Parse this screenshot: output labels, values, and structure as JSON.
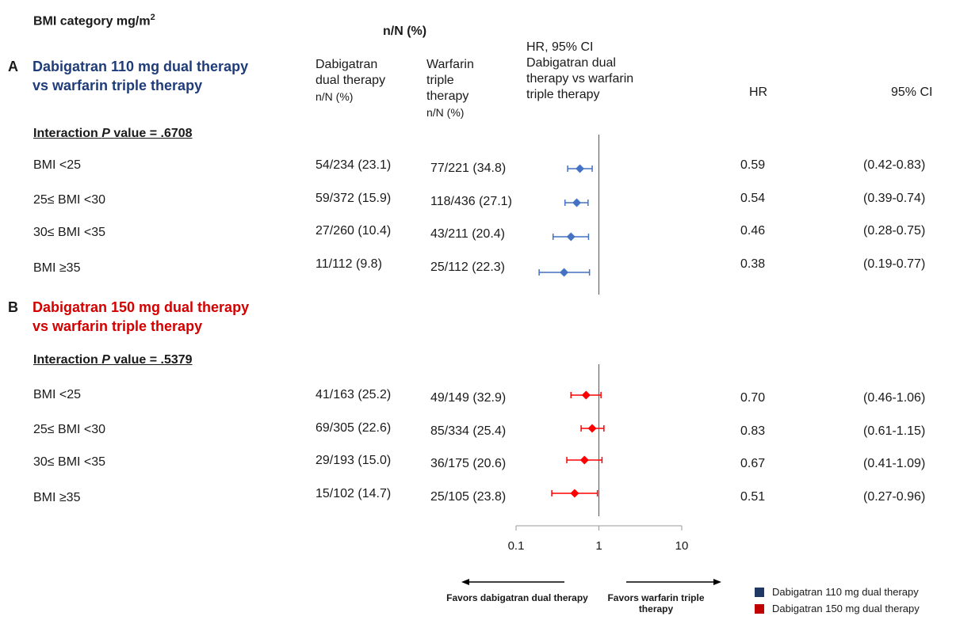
{
  "header": {
    "bmi_category": "BMI category mg/m",
    "bmi_sup": "2",
    "nN": "n/N (%)",
    "dabi_col": [
      "Dabigatran",
      "dual therapy"
    ],
    "dabi_col_sub": "n/N (%)",
    "warf_col": [
      "Warfarin",
      "triple",
      "therapy"
    ],
    "warf_col_sub": "n/N (%)",
    "hr_ci_col": [
      "HR, 95% CI",
      "Dabigatran dual",
      "therapy vs warfarin",
      "triple therapy"
    ],
    "hr_col": "HR",
    "ci_col": "95% CI"
  },
  "sections": [
    {
      "letter": "A",
      "title": [
        "Dabigatran  110 mg dual therapy",
        "vs warfarin triple therapy"
      ],
      "interaction_prefix": "Interaction ",
      "interaction_p": "P",
      "interaction_value": " value = .6708",
      "color": "#4472c4",
      "rows": [
        {
          "label": "BMI <25",
          "dabi": "54/234 (23.1)",
          "warf": "77/221 (34.8)",
          "hr_text": "0.59",
          "ci_text": "(0.42-0.83)"
        },
        {
          "label": "25≤ BMI <30",
          "dabi": "59/372 (15.9)",
          "warf": "118/436 (27.1)",
          "hr_text": "0.54",
          "ci_text": "(0.39-0.74)"
        },
        {
          "label": "30≤ BMI <35",
          "dabi": "27/260 (10.4)",
          "warf": "43/211 (20.4)",
          "hr_text": "0.46",
          "ci_text": "(0.28-0.75)"
        },
        {
          "label": "BMI ≥35",
          "dabi": "11/112 (9.8)",
          "warf": "25/112 (22.3)",
          "hr_text": "0.38",
          "ci_text": "(0.19-0.77)"
        }
      ]
    },
    {
      "letter": "B",
      "title": [
        "Dabigatran 150 mg dual therapy",
        "vs warfarin triple therapy"
      ],
      "interaction_prefix": "Interaction ",
      "interaction_p": "P",
      "interaction_value": " value = .5379",
      "color": "#ff0000",
      "rows": [
        {
          "label": "BMI <25",
          "dabi": "41/163 (25.2)",
          "warf": "49/149 (32.9)",
          "hr_text": "0.70",
          "ci_text": "(0.46-1.06)"
        },
        {
          "label": "25≤ BMI <30",
          "dabi": "69/305 (22.6)",
          "warf": "85/334 (25.4)",
          "hr_text": "0.83",
          "ci_text": "(0.61-1.15)"
        },
        {
          "label": "30≤ BMI <35",
          "dabi": "29/193 (15.0)",
          "warf": "36/175 (20.6)",
          "hr_text": "0.67",
          "ci_text": "(0.41-1.09)"
        },
        {
          "label": "BMI ≥35",
          "dabi": "15/102 (14.7)",
          "warf": "25/105 (23.8)",
          "hr_text": "0.51",
          "ci_text": "(0.27-0.96)"
        }
      ]
    }
  ],
  "axis": {
    "ticks": [
      "0.1",
      "1",
      "10"
    ],
    "scale": "log"
  },
  "favors": {
    "left": "Favors  dabigatran dual therapy",
    "right": "Favors  warfarin triple therapy"
  },
  "legend": [
    {
      "label": "Dabigatran  110 mg dual therapy",
      "color": "#1f3864"
    },
    {
      "label": "Dabigatran  150 mg dual therapy",
      "color": "#c00000"
    }
  ],
  "chart_data": {
    "type": "forest",
    "xscale": "log",
    "xlim": [
      0.1,
      10
    ],
    "reference_line": 1,
    "xticks": [
      0.1,
      1,
      10
    ],
    "series": [
      {
        "name": "Dabigatran  110 mg dual therapy",
        "color": "#4472c4",
        "categories": [
          "BMI <25",
          "25≤ BMI <30",
          "30≤ BMI <35",
          "BMI ≥35"
        ],
        "hr": [
          0.59,
          0.54,
          0.46,
          0.38
        ],
        "ci_low": [
          0.42,
          0.39,
          0.28,
          0.19
        ],
        "ci_high": [
          0.83,
          0.74,
          0.75,
          0.77
        ]
      },
      {
        "name": "Dabigatran  150 mg dual therapy",
        "color": "#ff0000",
        "categories": [
          "BMI <25",
          "25≤ BMI <30",
          "30≤ BMI <35",
          "BMI ≥35"
        ],
        "hr": [
          0.7,
          0.83,
          0.67,
          0.51
        ],
        "ci_low": [
          0.46,
          0.61,
          0.41,
          0.27
        ],
        "ci_high": [
          1.06,
          1.15,
          1.09,
          0.96
        ]
      }
    ]
  }
}
